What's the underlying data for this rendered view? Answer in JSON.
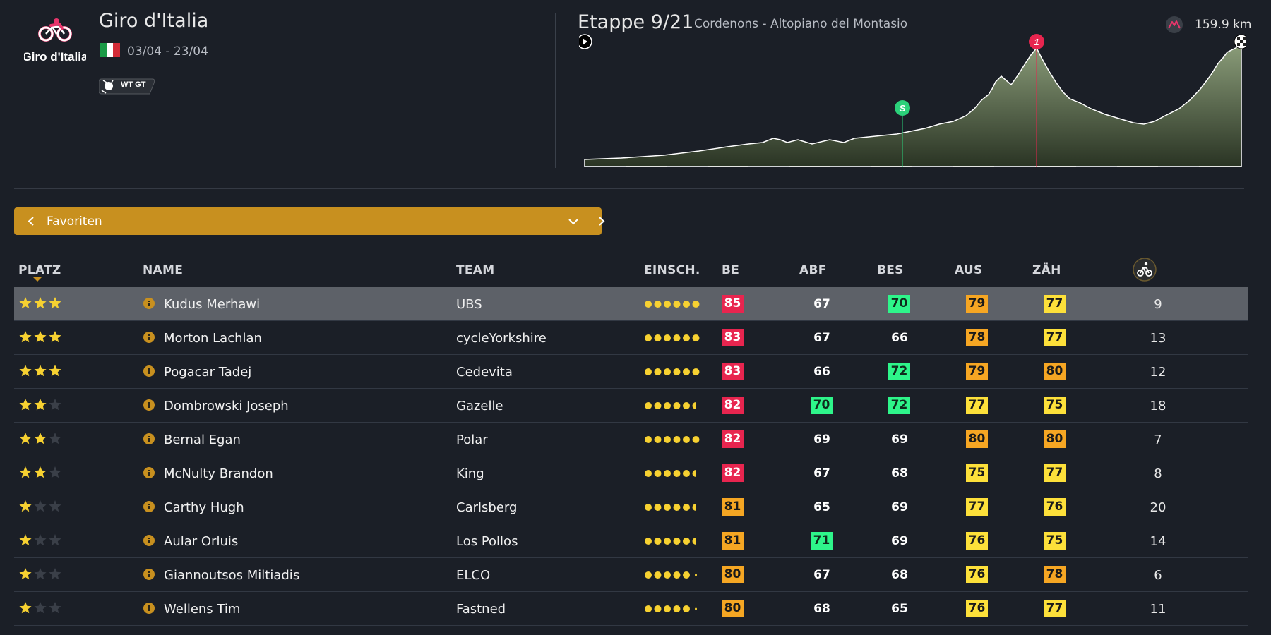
{
  "race": {
    "title": "Giro d'Italia",
    "dates": "03/04 - 23/04",
    "logo_text": "Giro d'Italia",
    "badge": "WT GT"
  },
  "stage": {
    "title": "Etappe 9/21",
    "route": "Cordenons - Altopiano del Montasio",
    "distance": "159.9 km",
    "sprint_marker": "S",
    "climb_marker": "1"
  },
  "selector": {
    "label": "Favoriten"
  },
  "table": {
    "headers": {
      "platz": "PLATZ",
      "name": "NAME",
      "team": "TEAM",
      "einsch": "EINSCH.",
      "be": "BE",
      "abf": "ABF",
      "bes": "BES",
      "aus": "AUS",
      "zah": "ZÄH"
    },
    "rows": [
      {
        "stars": 3,
        "name": "Kudus Merhawi",
        "team": "UBS",
        "dots": 6,
        "be": "85",
        "abf": "67",
        "bes": "70",
        "aus": "79",
        "zah": "77",
        "rank": "9",
        "selected": true
      },
      {
        "stars": 3,
        "name": "Morton Lachlan",
        "team": "cycleYorkshire",
        "dots": 6,
        "be": "83",
        "abf": "67",
        "bes": "66",
        "aus": "78",
        "zah": "77",
        "rank": "13"
      },
      {
        "stars": 3,
        "name": "Pogacar Tadej",
        "team": "Cedevita",
        "dots": 6,
        "be": "83",
        "abf": "66",
        "bes": "72",
        "aus": "79",
        "zah": "80",
        "rank": "12"
      },
      {
        "stars": 2,
        "name": "Dombrowski Joseph",
        "team": "Gazelle",
        "dots": 5.5,
        "be": "82",
        "abf": "70",
        "bes": "72",
        "aus": "77",
        "zah": "75",
        "rank": "18"
      },
      {
        "stars": 2,
        "name": "Bernal Egan",
        "team": "Polar",
        "dots": 6,
        "be": "82",
        "abf": "69",
        "bes": "69",
        "aus": "80",
        "zah": "80",
        "rank": "7"
      },
      {
        "stars": 2,
        "name": "McNulty Brandon",
        "team": "King",
        "dots": 5.5,
        "be": "82",
        "abf": "67",
        "bes": "68",
        "aus": "75",
        "zah": "77",
        "rank": "8"
      },
      {
        "stars": 1,
        "name": "Carthy Hugh",
        "team": "Carlsberg",
        "dots": 5.5,
        "be": "81",
        "abf": "65",
        "bes": "69",
        "aus": "77",
        "zah": "76",
        "rank": "20"
      },
      {
        "stars": 1,
        "name": "Aular Orluis",
        "team": "Los Pollos",
        "dots": 5.5,
        "be": "81",
        "abf": "71",
        "bes": "69",
        "aus": "76",
        "zah": "75",
        "rank": "14"
      },
      {
        "stars": 1,
        "name": "Giannoutsos Miltiadis",
        "team": "ELCO",
        "dots": 5,
        "be": "80",
        "abf": "67",
        "bes": "68",
        "aus": "76",
        "zah": "78",
        "rank": "6"
      },
      {
        "stars": 1,
        "name": "Wellens Tim",
        "team": "Fastned",
        "dots": 5,
        "be": "80",
        "abf": "68",
        "bes": "65",
        "aus": "76",
        "zah": "77",
        "rank": "11"
      }
    ]
  },
  "colors": {
    "accent": "#c8901f",
    "be_high": "#e8254f",
    "be_mid": "#f5a623",
    "green": "#2ef58a",
    "orange": "#f6a623",
    "yellow": "#fde03a",
    "star": "#f7d131"
  },
  "icons": {
    "logo": "giro-cyclist-logo",
    "distance": "mountain-distance-icon",
    "start": "play-icon",
    "finish": "checkered-flag-icon",
    "info": "info-icon",
    "col": "cyclist-icon"
  }
}
